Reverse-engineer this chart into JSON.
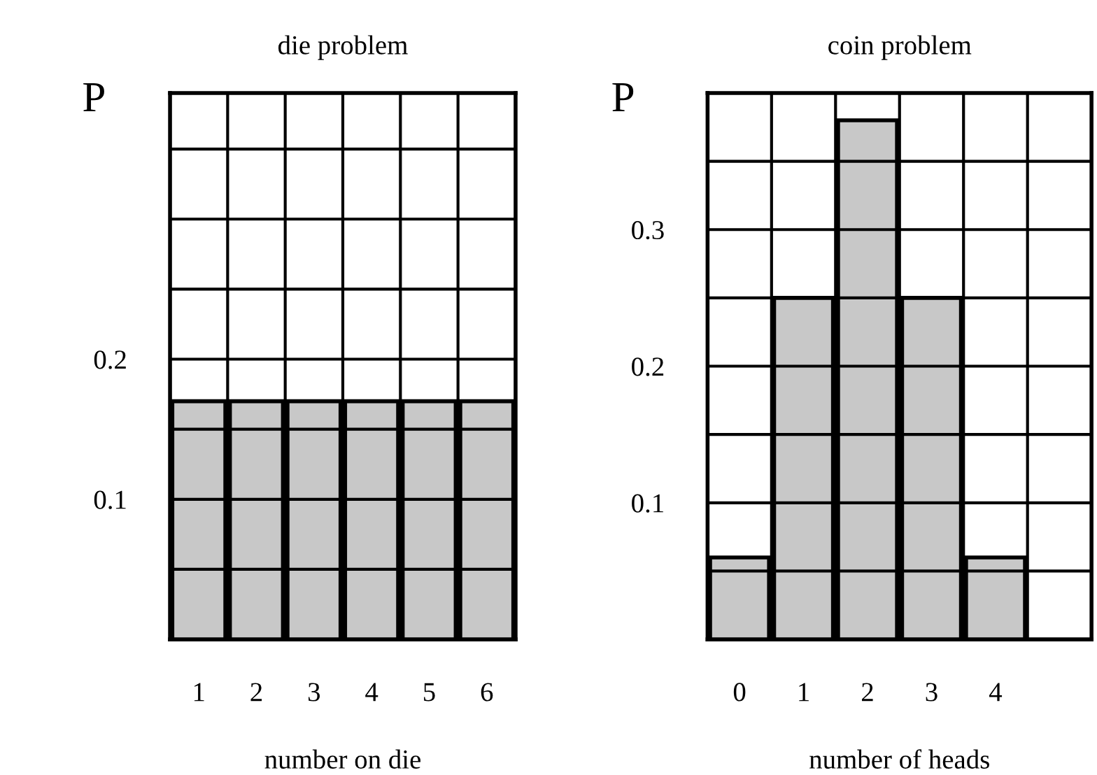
{
  "chart_data": [
    {
      "type": "bar",
      "title": "die problem",
      "xlabel": "number on die",
      "ylabel": "P",
      "categories": [
        "1",
        "2",
        "3",
        "4",
        "5",
        "6"
      ],
      "values": [
        0.17,
        0.17,
        0.17,
        0.17,
        0.17,
        0.17
      ],
      "color": "#c8c8c8",
      "ylim": [
        0,
        0.39
      ],
      "yticks": [
        {
          "value": 0.05,
          "label": null
        },
        0.1,
        {
          "value": 0.15,
          "label": null
        },
        0.2,
        {
          "value": 0.25,
          "label": null
        },
        {
          "value": 0.3,
          "label": null
        },
        {
          "value": 0.35,
          "label": null
        }
      ],
      "grid": true
    },
    {
      "type": "bar",
      "title": "coin problem",
      "xlabel": "number of heads",
      "ylabel": "P",
      "categories": [
        "0",
        "1",
        "2",
        "3",
        "4",
        null
      ],
      "values": [
        0.06,
        0.25,
        0.38,
        0.25,
        0.06,
        null
      ],
      "color": "#c8c8c8",
      "ylim": [
        0,
        0.4
      ],
      "yticks": [
        {
          "value": 0.05,
          "label": null
        },
        0.1,
        {
          "value": 0.15,
          "label": null
        },
        0.2,
        {
          "value": 0.25,
          "label": null
        },
        0.3,
        {
          "value": 0.35,
          "label": null
        }
      ],
      "grid": true
    }
  ]
}
